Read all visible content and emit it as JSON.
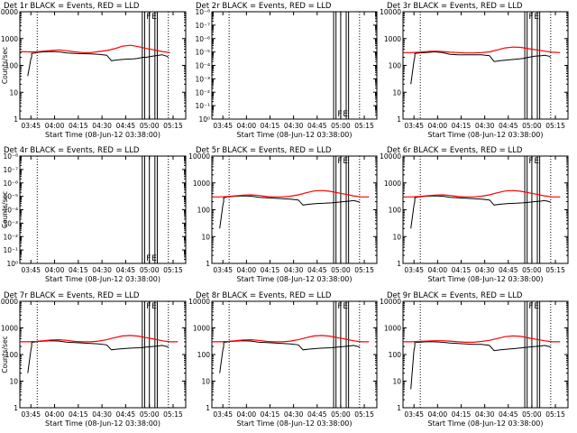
{
  "figure": {
    "background": "#ffffff",
    "axis_color": "#000000"
  },
  "series_colors": {
    "events": "#000000",
    "lld": "#ff0000"
  },
  "chart_data": [
    {
      "type": "line",
      "title": "Det 1r BLACK = Events, RED = LLD",
      "xlabel": "Start Time (08-Jun-12 03:38:00)",
      "ylabel": "Counts/sec",
      "yscale": "log",
      "ylim": [
        1,
        10000
      ],
      "yticks": [
        "1",
        "10",
        "100",
        "1000",
        "10000"
      ],
      "xticks": [
        "03:45",
        "04:00",
        "04:15",
        "04:30",
        "04:45",
        "05:00",
        "05:15"
      ],
      "xlim_min": [
        0,
        105
      ],
      "flags": [
        "F",
        "E"
      ],
      "series": [
        {
          "kind": "events",
          "x": [
            5,
            7,
            7.5,
            7.5,
            10,
            10,
            15,
            20,
            25,
            30,
            35,
            45,
            50,
            55,
            58,
            62,
            67,
            72,
            74,
            76,
            78,
            80,
            82,
            84,
            86,
            88,
            90,
            93,
            94
          ],
          "y": [
            40,
            180,
            200,
            280,
            290,
            300,
            320,
            330,
            320,
            290,
            280,
            270,
            260,
            240,
            150,
            160,
            170,
            175,
            180,
            190,
            200,
            200,
            210,
            220,
            230,
            240,
            250,
            220,
            200
          ]
        },
        {
          "kind": "lld",
          "x": [
            0,
            5,
            10,
            15,
            20,
            25,
            30,
            35,
            40,
            45,
            50,
            55,
            60,
            65,
            70,
            75,
            80,
            85,
            90,
            95
          ],
          "y": [
            330,
            320,
            320,
            340,
            360,
            380,
            350,
            320,
            300,
            300,
            330,
            360,
            420,
            520,
            560,
            500,
            430,
            380,
            330,
            300
          ]
        }
      ]
    },
    {
      "type": "line",
      "title": "Det 2r BLACK = Events, RED = LLD",
      "xlabel": "Start Time (08-Jun-12 03:38:00)",
      "ylabel": "",
      "yscale": "log",
      "ylim": [
        1,
        1e-09
      ],
      "yticks": [
        "10⁰",
        "10⁻¹",
        "10⁻²",
        "10⁻³",
        "10⁻⁴",
        "10⁻⁵",
        "10⁻⁶",
        "10⁻⁷",
        "10⁻⁸"
      ],
      "xticks": [
        "03:45",
        "04:00",
        "04:15",
        "04:30",
        "04:45",
        "05:00",
        "05:15"
      ],
      "flags": [
        "F",
        "E"
      ],
      "series": []
    },
    {
      "type": "line",
      "title": "Det 3r BLACK = Events, RED = LLD",
      "xlabel": "Start Time (08-Jun-12 03:38:00)",
      "ylabel": "",
      "yscale": "log",
      "ylim": [
        1,
        10000
      ],
      "yticks": [
        "1",
        "10",
        "100",
        "1000",
        "10000"
      ],
      "xticks": [
        "03:45",
        "04:00",
        "04:15",
        "04:30",
        "04:45",
        "05:00",
        "05:15"
      ],
      "flags": [
        "F",
        "E"
      ],
      "series": [
        {
          "kind": "events",
          "x": [
            5,
            7,
            7.5,
            7.5,
            10,
            15,
            20,
            25,
            30,
            35,
            40,
            45,
            50,
            55,
            58,
            62,
            67,
            72,
            76,
            80,
            84,
            88,
            90,
            93,
            94
          ],
          "y": [
            20,
            150,
            200,
            280,
            290,
            300,
            320,
            300,
            260,
            250,
            250,
            250,
            250,
            230,
            140,
            150,
            160,
            170,
            180,
            200,
            220,
            230,
            240,
            220,
            200
          ]
        },
        {
          "kind": "lld",
          "x": [
            0,
            5,
            10,
            15,
            20,
            25,
            30,
            35,
            40,
            45,
            50,
            55,
            60,
            65,
            70,
            75,
            80,
            85,
            90,
            95,
            100
          ],
          "y": [
            300,
            300,
            310,
            330,
            340,
            330,
            310,
            300,
            290,
            290,
            300,
            320,
            380,
            450,
            480,
            470,
            420,
            380,
            340,
            310,
            300
          ]
        }
      ]
    },
    {
      "type": "line",
      "title": "Det 4r BLACK = Events, RED = LLD",
      "xlabel": "Start Time (08-Jun-12 03:38:00)",
      "ylabel": "Counts/sec",
      "yscale": "log",
      "ylim": [
        1,
        1e-09
      ],
      "yticks": [
        "10⁰",
        "10⁻¹",
        "10⁻²",
        "10⁻³",
        "10⁻⁴",
        "10⁻⁵",
        "10⁻⁶",
        "10⁻⁷",
        "10⁻⁸"
      ],
      "xticks": [
        "03:45",
        "04:00",
        "04:15",
        "04:30",
        "04:45",
        "05:00",
        "05:15"
      ],
      "flags": [
        "F",
        "E"
      ],
      "series": []
    },
    {
      "type": "line",
      "title": "Det 5r BLACK = Events, RED = LLD",
      "xlabel": "Start Time (08-Jun-12 03:38:00)",
      "ylabel": "",
      "yscale": "log",
      "ylim": [
        1,
        10000
      ],
      "yticks": [
        "1",
        "10",
        "100",
        "1000",
        "10000"
      ],
      "xticks": [
        "03:45",
        "04:00",
        "04:15",
        "04:30",
        "04:45",
        "05:00",
        "05:15"
      ],
      "flags": [
        "F",
        "E"
      ],
      "series": [
        {
          "kind": "events",
          "x": [
            5,
            7,
            7.5,
            7.5,
            10,
            15,
            20,
            25,
            30,
            35,
            40,
            45,
            50,
            55,
            58,
            62,
            67,
            72,
            76,
            80,
            84,
            88,
            90,
            93,
            94
          ],
          "y": [
            20,
            150,
            200,
            280,
            300,
            320,
            330,
            320,
            290,
            280,
            270,
            260,
            250,
            230,
            150,
            160,
            170,
            175,
            180,
            190,
            200,
            210,
            220,
            200,
            190
          ]
        },
        {
          "kind": "lld",
          "x": [
            0,
            5,
            10,
            15,
            20,
            25,
            30,
            35,
            40,
            45,
            50,
            55,
            60,
            65,
            70,
            75,
            80,
            85,
            90,
            95,
            100
          ],
          "y": [
            300,
            300,
            310,
            330,
            350,
            360,
            340,
            310,
            300,
            300,
            320,
            360,
            430,
            500,
            520,
            490,
            430,
            380,
            330,
            300,
            300
          ]
        }
      ]
    },
    {
      "type": "line",
      "title": "Det 6r BLACK = Events, RED = LLD",
      "xlabel": "Start Time (08-Jun-12 03:38:00)",
      "ylabel": "",
      "yscale": "log",
      "ylim": [
        1,
        10000
      ],
      "yticks": [
        "1",
        "10",
        "100",
        "1000",
        "10000"
      ],
      "xticks": [
        "03:45",
        "04:00",
        "04:15",
        "04:30",
        "04:45",
        "05:00",
        "05:15"
      ],
      "flags": [
        "F",
        "E"
      ],
      "series": [
        {
          "kind": "events",
          "x": [
            5,
            7,
            7.5,
            7.5,
            10,
            15,
            20,
            25,
            30,
            35,
            40,
            45,
            50,
            55,
            58,
            62,
            67,
            72,
            76,
            80,
            84,
            88,
            90,
            93,
            94
          ],
          "y": [
            20,
            150,
            200,
            280,
            300,
            320,
            330,
            320,
            290,
            280,
            270,
            260,
            250,
            230,
            150,
            160,
            170,
            175,
            180,
            190,
            200,
            210,
            220,
            200,
            190
          ]
        },
        {
          "kind": "lld",
          "x": [
            0,
            5,
            10,
            15,
            20,
            25,
            30,
            35,
            40,
            45,
            50,
            55,
            60,
            65,
            70,
            75,
            80,
            85,
            90,
            95,
            100
          ],
          "y": [
            300,
            300,
            310,
            330,
            350,
            360,
            340,
            310,
            300,
            300,
            320,
            360,
            430,
            500,
            520,
            490,
            430,
            380,
            330,
            300,
            300
          ]
        }
      ]
    },
    {
      "type": "line",
      "title": "Det 7r BLACK = Events, RED = LLD",
      "xlabel": "Start Time (08-Jun-12 03:38:00)",
      "ylabel": "Counts/sec",
      "yscale": "log",
      "ylim": [
        1,
        10000
      ],
      "yticks": [
        "1",
        "10",
        "100",
        "1000",
        "10000"
      ],
      "xticks": [
        "03:45",
        "04:00",
        "04:15",
        "04:30",
        "04:45",
        "05:00",
        "05:15"
      ],
      "flags": [
        "F",
        "E"
      ],
      "series": [
        {
          "kind": "events",
          "x": [
            5,
            7,
            7.5,
            7.5,
            10,
            15,
            20,
            25,
            30,
            35,
            40,
            45,
            50,
            55,
            58,
            62,
            67,
            72,
            76,
            80,
            84,
            88,
            90,
            93,
            94
          ],
          "y": [
            20,
            150,
            200,
            280,
            300,
            320,
            330,
            320,
            290,
            280,
            270,
            260,
            250,
            230,
            150,
            160,
            170,
            175,
            180,
            190,
            200,
            210,
            220,
            200,
            190
          ]
        },
        {
          "kind": "lld",
          "x": [
            0,
            5,
            10,
            15,
            20,
            25,
            30,
            35,
            40,
            45,
            50,
            55,
            60,
            65,
            70,
            75,
            80,
            85,
            90,
            95,
            100
          ],
          "y": [
            300,
            300,
            310,
            330,
            350,
            360,
            340,
            310,
            300,
            300,
            320,
            360,
            430,
            500,
            520,
            490,
            430,
            380,
            330,
            300,
            300
          ]
        }
      ]
    },
    {
      "type": "line",
      "title": "Det 8r BLACK = Events, RED = LLD",
      "xlabel": "Start Time (08-Jun-12 03:38:00)",
      "ylabel": "",
      "yscale": "log",
      "ylim": [
        1,
        10000
      ],
      "yticks": [
        "1",
        "10",
        "100",
        "1000",
        "10000"
      ],
      "xticks": [
        "03:45",
        "04:00",
        "04:15",
        "04:30",
        "04:45",
        "05:00",
        "05:15"
      ],
      "flags": [
        "F",
        "E"
      ],
      "series": [
        {
          "kind": "events",
          "x": [
            5,
            7,
            7.5,
            7.5,
            10,
            15,
            20,
            25,
            30,
            35,
            40,
            45,
            50,
            55,
            58,
            62,
            67,
            72,
            76,
            80,
            84,
            88,
            90,
            93,
            94
          ],
          "y": [
            20,
            150,
            200,
            280,
            300,
            320,
            330,
            320,
            290,
            280,
            270,
            260,
            250,
            230,
            150,
            160,
            170,
            175,
            180,
            190,
            200,
            210,
            220,
            200,
            190
          ]
        },
        {
          "kind": "lld",
          "x": [
            0,
            5,
            10,
            15,
            20,
            25,
            30,
            35,
            40,
            45,
            50,
            55,
            60,
            65,
            70,
            75,
            80,
            85,
            90,
            95,
            100
          ],
          "y": [
            300,
            300,
            310,
            330,
            350,
            360,
            340,
            310,
            300,
            300,
            320,
            360,
            430,
            500,
            520,
            490,
            430,
            380,
            330,
            300,
            300
          ]
        }
      ]
    },
    {
      "type": "line",
      "title": "Det 9r BLACK = Events, RED = LLD",
      "xlabel": "Start Time (08-Jun-12 03:38:00)",
      "ylabel": "",
      "yscale": "log",
      "ylim": [
        1,
        10000
      ],
      "yticks": [
        "1",
        "10",
        "100",
        "1000",
        "10000"
      ],
      "xticks": [
        "03:45",
        "04:00",
        "04:15",
        "04:30",
        "04:45",
        "05:00",
        "05:15"
      ],
      "flags": [
        "F",
        "E"
      ],
      "series": [
        {
          "kind": "events",
          "x": [
            5,
            7,
            7.5,
            7.5,
            10,
            15,
            20,
            25,
            30,
            35,
            40,
            45,
            50,
            55,
            58,
            62,
            67,
            72,
            76,
            80,
            84,
            88,
            90,
            93,
            94
          ],
          "y": [
            5,
            150,
            200,
            280,
            290,
            300,
            300,
            290,
            270,
            260,
            250,
            240,
            240,
            220,
            140,
            150,
            160,
            170,
            180,
            190,
            200,
            210,
            220,
            200,
            190
          ]
        },
        {
          "kind": "lld",
          "x": [
            0,
            5,
            10,
            15,
            20,
            25,
            30,
            35,
            40,
            45,
            50,
            55,
            60,
            65,
            70,
            75,
            80,
            85,
            90,
            95,
            100
          ],
          "y": [
            300,
            300,
            310,
            320,
            330,
            330,
            320,
            300,
            290,
            290,
            310,
            340,
            400,
            470,
            500,
            480,
            420,
            370,
            330,
            300,
            300
          ]
        }
      ]
    }
  ]
}
